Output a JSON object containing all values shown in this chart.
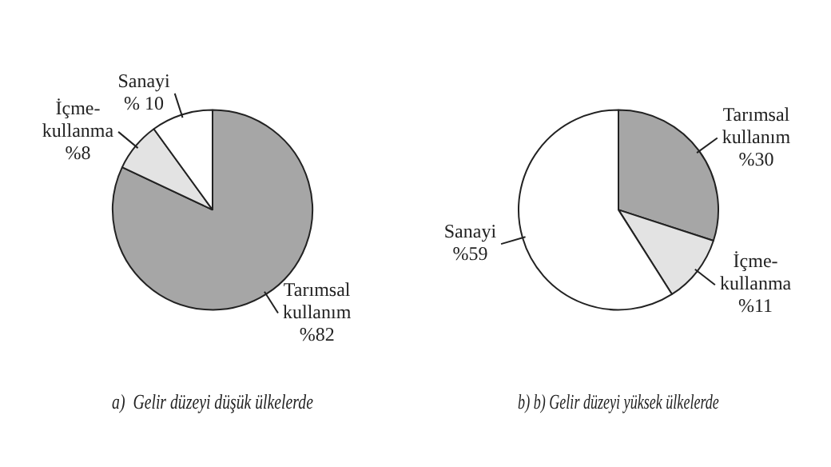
{
  "chart_data": [
    {
      "type": "pie",
      "title": "a)  Gelir düzeyi düşük ülkelerde",
      "categories": [
        "Tarımsal kullanım",
        "İçme-kullanma",
        "Sanayi"
      ],
      "values": [
        82,
        8,
        10
      ],
      "value_labels": [
        "%82",
        "%8",
        "% 10"
      ],
      "colors": [
        "#a6a6a6",
        "#e3e3e3",
        "#ffffff"
      ],
      "legend": false
    },
    {
      "type": "pie",
      "title": "b) b) Gelir düzeyi yüksek ülkelerde",
      "categories": [
        "Tarımsal kullanım",
        "İçme-kullanma",
        "Sanayi"
      ],
      "values": [
        30,
        11,
        59
      ],
      "value_labels": [
        "%30",
        "%11",
        "%59"
      ],
      "colors": [
        "#a6a6a6",
        "#e3e3e3",
        "#ffffff"
      ],
      "legend": false
    }
  ]
}
